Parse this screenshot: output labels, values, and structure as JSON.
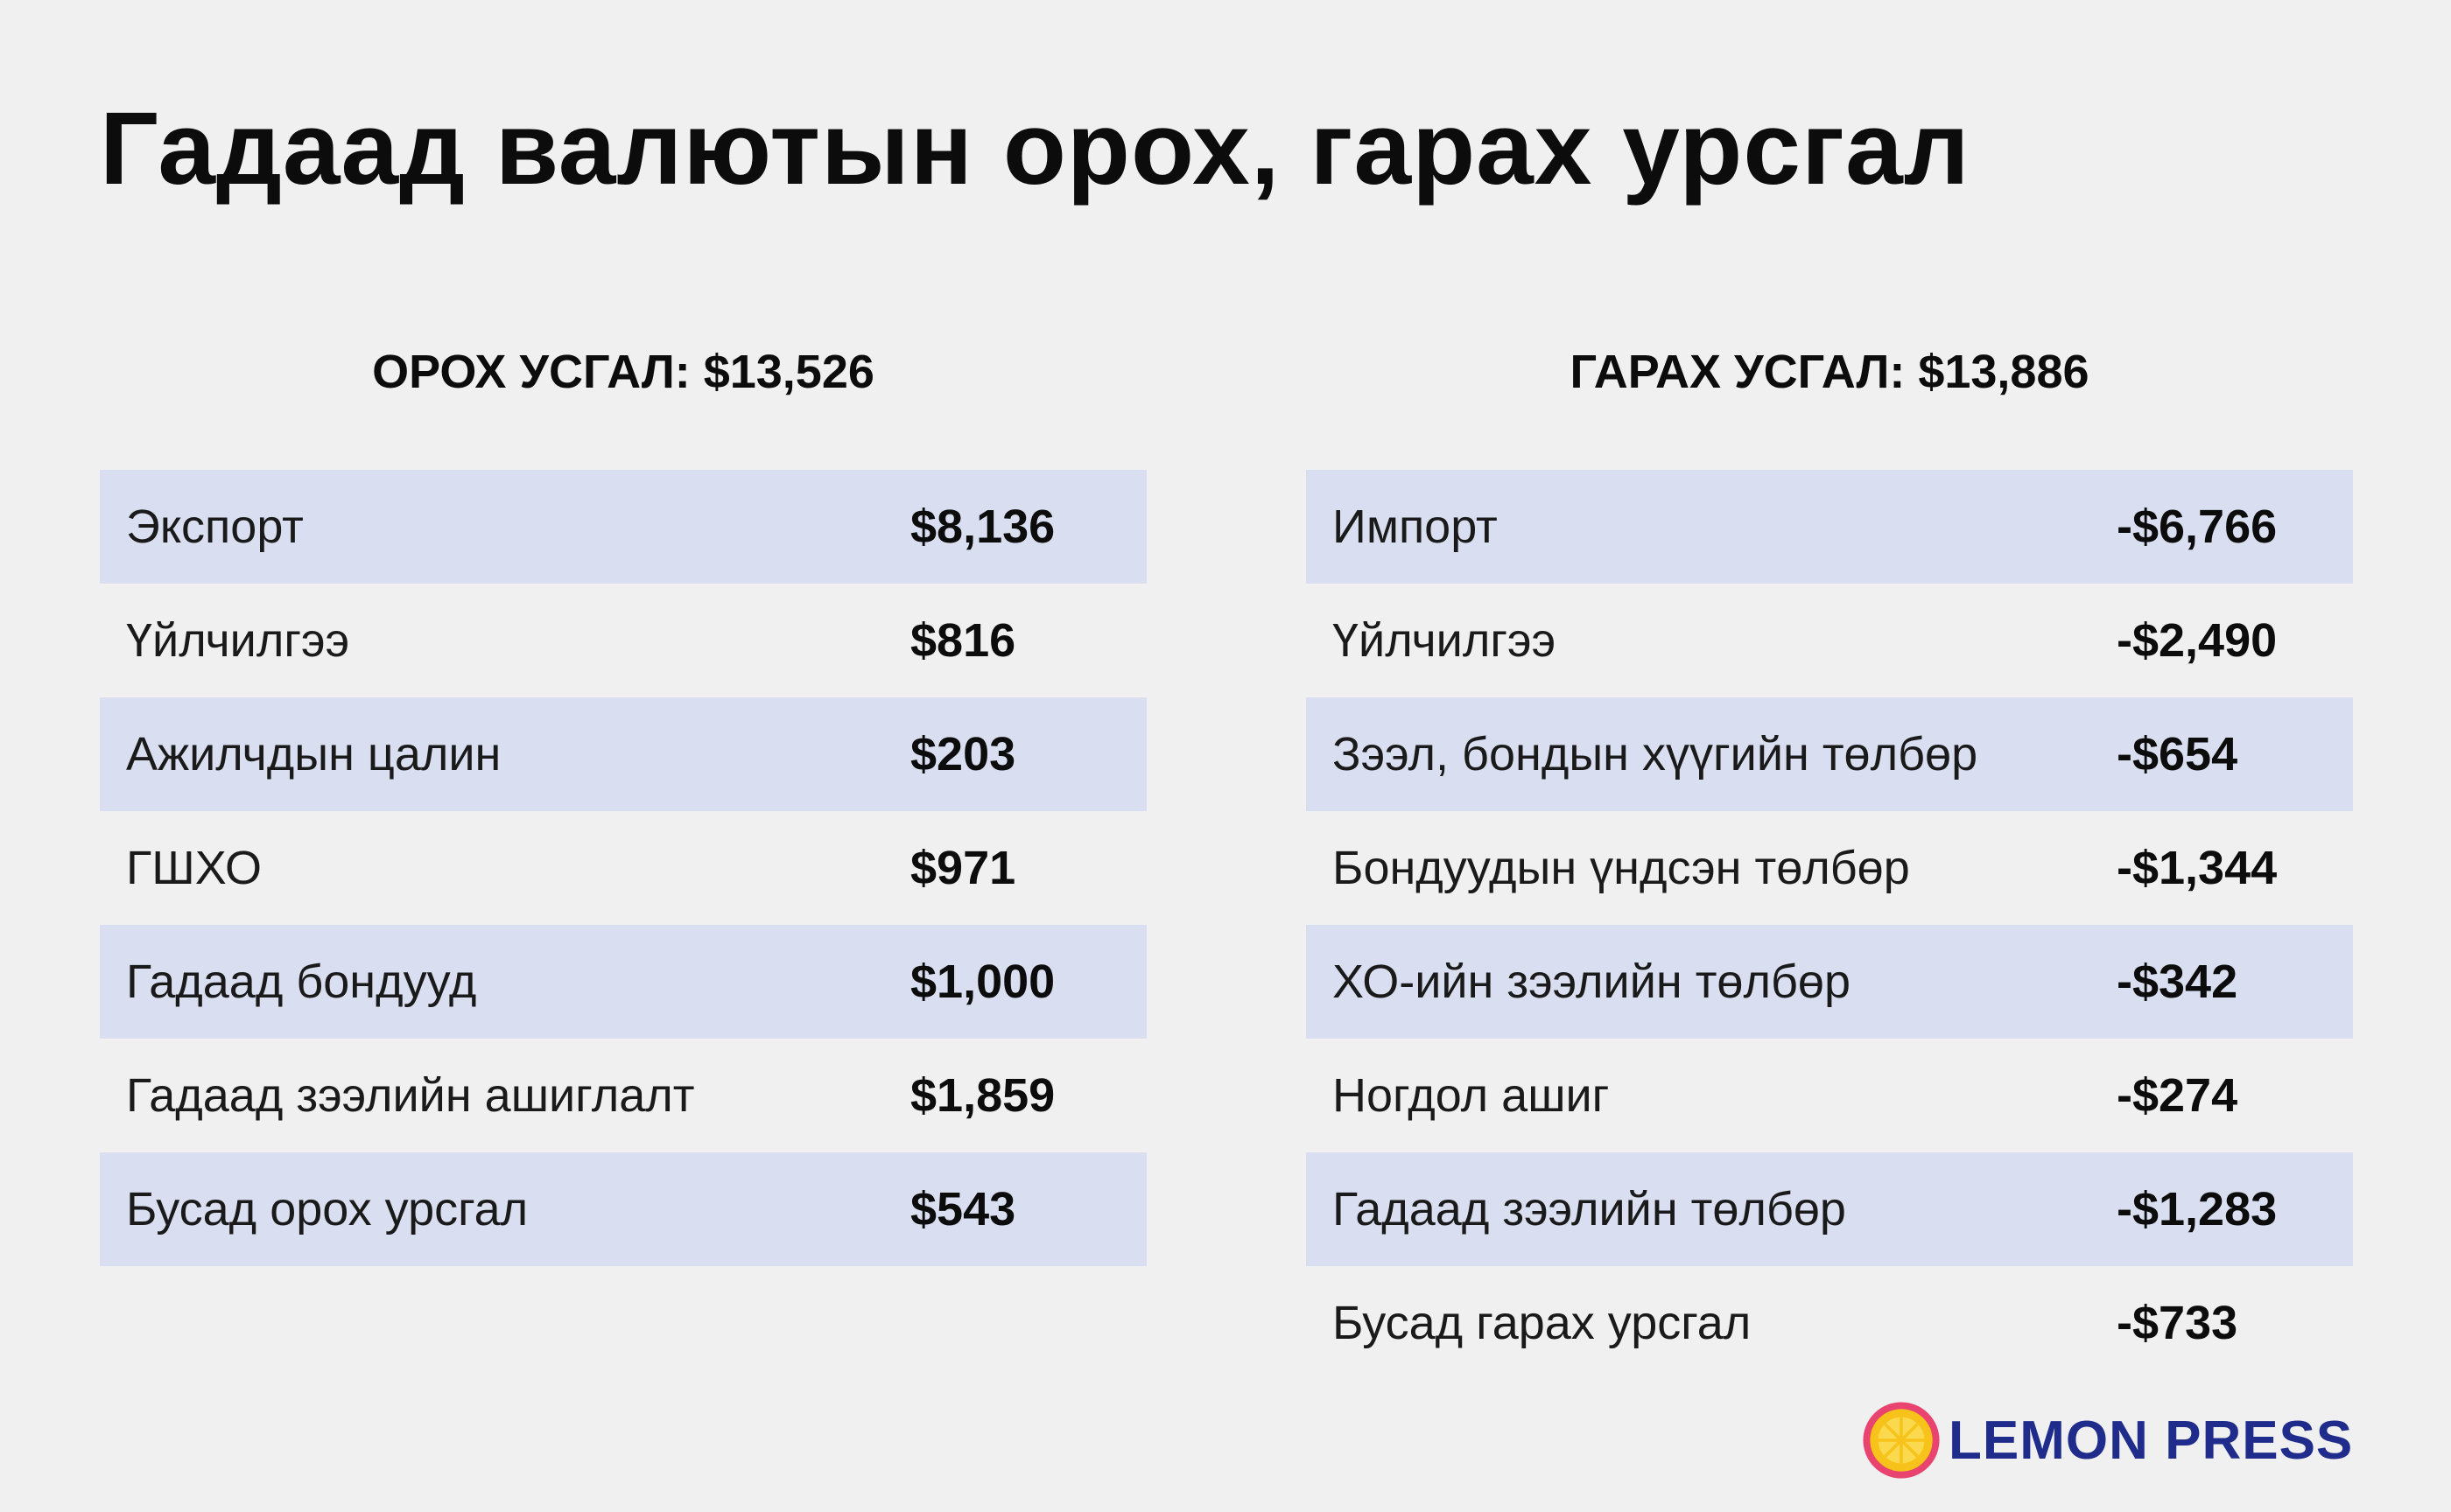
{
  "title": "Гадаад валютын орох, гарах урсгал",
  "colors": {
    "background": "#f0f0f0",
    "stripe": "#d9dff0",
    "logo_text": "#1f2c8c",
    "logo_ring": "#e8446f",
    "logo_fill": "#f7c21a"
  },
  "chart_data": {
    "type": "table",
    "tables": [
      {
        "header": "ОРОХ УСГАЛ: $13,526",
        "rows": [
          {
            "label": "Экспорт",
            "value": "$8,136"
          },
          {
            "label": "Үйлчилгээ",
            "value": "$816"
          },
          {
            "label": "Ажилчдын цалин",
            "value": "$203"
          },
          {
            "label": "ГШХО",
            "value": "$971"
          },
          {
            "label": "Гадаад бондууд",
            "value": "$1,000"
          },
          {
            "label": "Гадаад зээлийн ашиглалт",
            "value": "$1,859"
          },
          {
            "label": "Бусад орох урсгал",
            "value": "$543"
          }
        ]
      },
      {
        "header": "ГАРАХ УСГАЛ: $13,886",
        "rows": [
          {
            "label": "Импорт",
            "value": "-$6,766"
          },
          {
            "label": "Үйлчилгээ",
            "value": "-$2,490"
          },
          {
            "label": "Зээл, бондын хүүгийн төлбөр",
            "value": "-$654"
          },
          {
            "label": "Бондуудын үндсэн төлбөр",
            "value": "-$1,344"
          },
          {
            "label": "ХО-ийн зээлийн төлбөр",
            "value": "-$342"
          },
          {
            "label": "Ногдол ашиг",
            "value": "-$274"
          },
          {
            "label": "Гадаад зээлийн төлбөр",
            "value": "-$1,283"
          },
          {
            "label": "Бусад гарах урсгал",
            "value": "-$733"
          }
        ]
      }
    ]
  },
  "logo": {
    "text": "LEMON PRESS",
    "icon": "lemon-slice-icon"
  }
}
